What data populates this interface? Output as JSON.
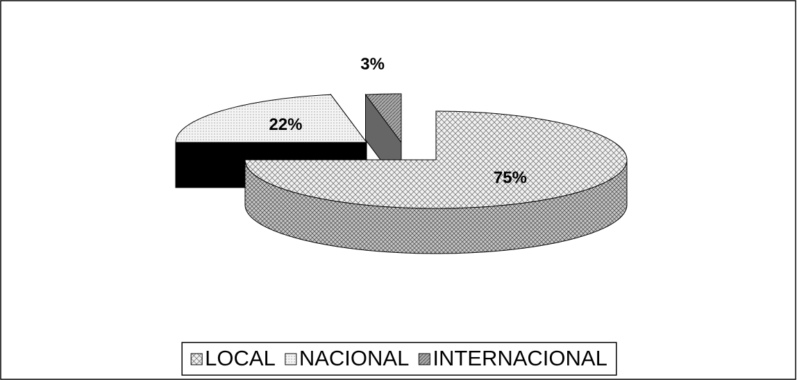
{
  "chart_data": {
    "type": "pie3d",
    "categories": [
      "LOCAL",
      "NACIONAL",
      "INTERNACIONAL"
    ],
    "values": [
      75,
      22,
      3
    ],
    "value_labels": [
      "75%",
      "22%",
      "3%"
    ],
    "legend": "bottom"
  }
}
